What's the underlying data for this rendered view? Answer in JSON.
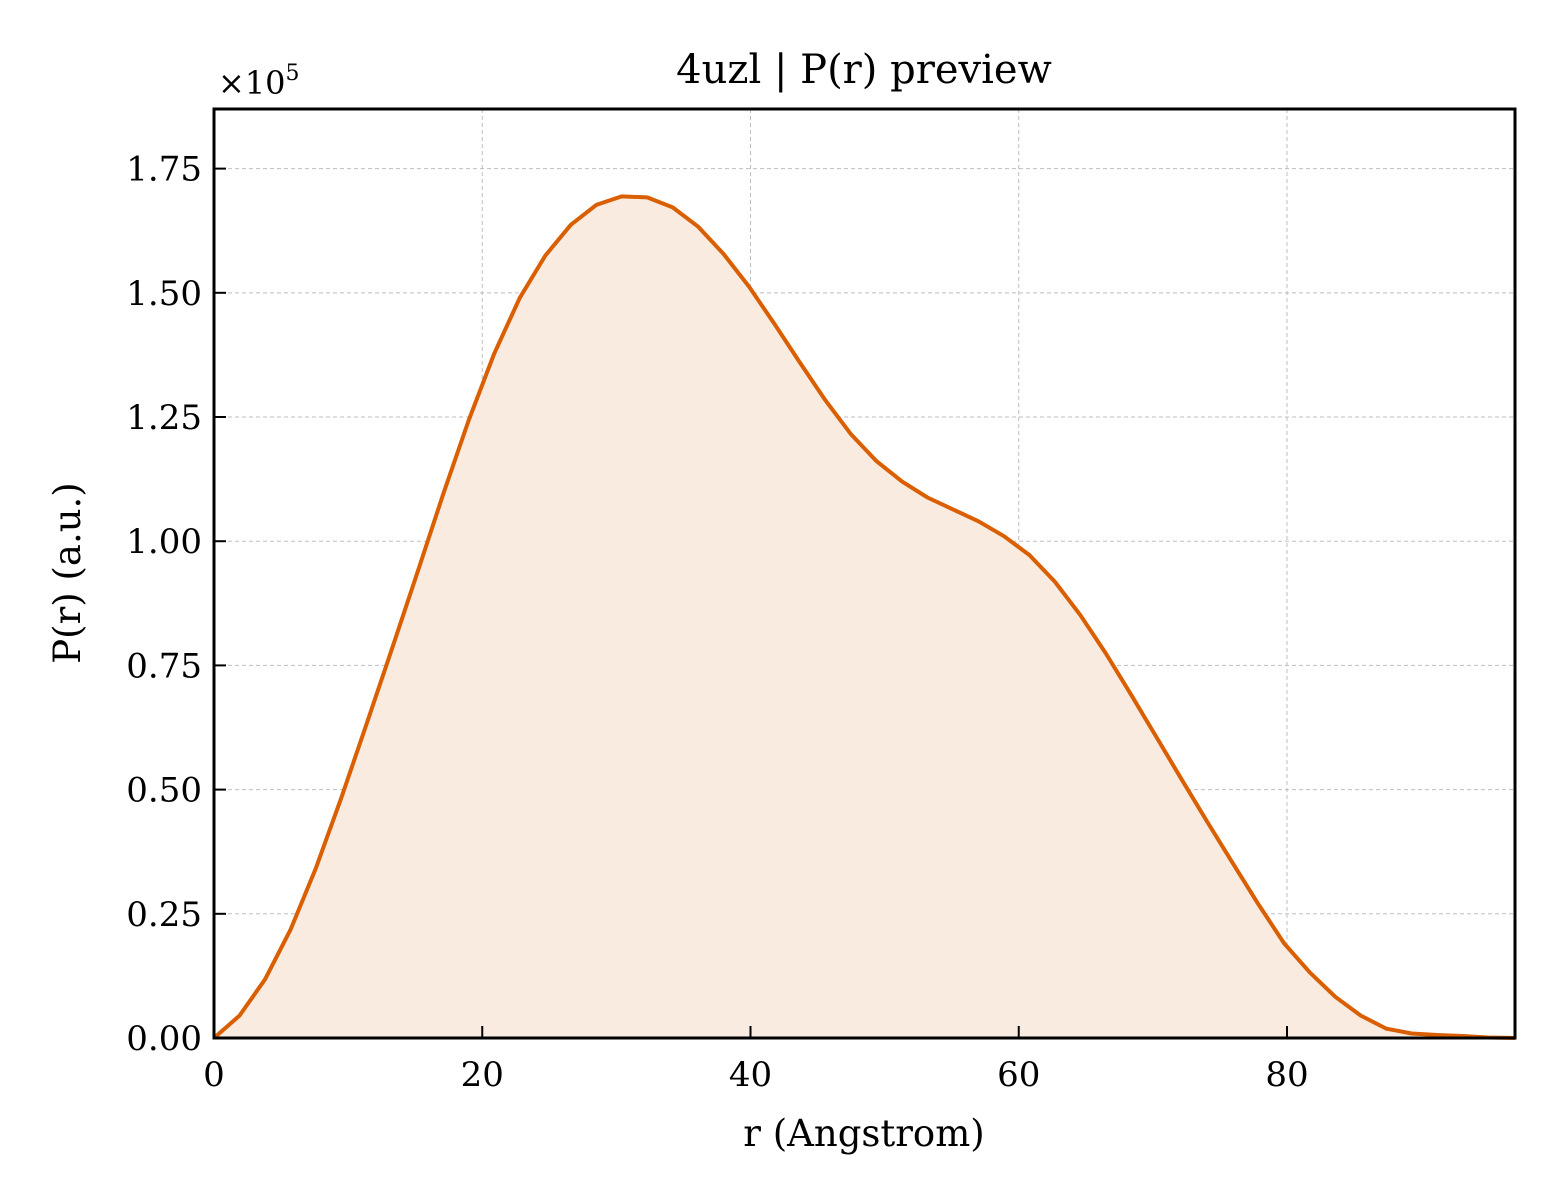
{
  "chart_data": {
    "type": "area",
    "title": "4uzl | P(r) preview",
    "xlabel": "r (Angstrom)",
    "ylabel": "P(r) (a.u.)",
    "y_offset_label": "×10",
    "y_offset_exponent": "5",
    "y_multiplier": 100000,
    "xlim": [
      0,
      97
    ],
    "ylim": [
      0,
      1.87
    ],
    "xticks": [
      0,
      20,
      40,
      60,
      80
    ],
    "xtick_labels": [
      "0",
      "20",
      "40",
      "60",
      "80"
    ],
    "yticks": [
      0,
      0.25,
      0.5,
      0.75,
      1.0,
      1.25,
      1.5,
      1.75
    ],
    "ytick_labels": [
      "0.00",
      "0.25",
      "0.50",
      "0.75",
      "1.00",
      "1.25",
      "1.50",
      "1.75"
    ],
    "grid": true,
    "line_color": "#d95f02",
    "fill_color": "#f9ebe0",
    "series": [
      {
        "x": [
          0,
          1.9,
          3.8,
          5.7,
          7.6,
          9.5,
          11.4,
          13.3,
          15.2,
          17.1,
          19.0,
          20.9,
          22.8,
          24.7,
          26.6,
          28.5,
          30.4,
          32.3,
          34.2,
          36.1,
          38.0,
          39.9,
          41.8,
          43.7,
          45.6,
          47.5,
          49.4,
          51.3,
          53.2,
          55.1,
          57.0,
          58.9,
          60.8,
          62.7,
          64.6,
          66.5,
          68.4,
          70.3,
          72.2,
          74.1,
          76.0,
          77.9,
          79.8,
          81.7,
          83.6,
          85.5,
          87.4,
          89.3,
          91.2,
          93.1,
          95.0,
          97.0
        ],
        "values": [
          0.0,
          0.045,
          0.118,
          0.218,
          0.342,
          0.484,
          0.634,
          0.786,
          0.94,
          1.096,
          1.244,
          1.378,
          1.49,
          1.575,
          1.637,
          1.677,
          1.694,
          1.692,
          1.672,
          1.633,
          1.578,
          1.512,
          1.437,
          1.359,
          1.283,
          1.215,
          1.161,
          1.12,
          1.088,
          1.064,
          1.04,
          1.01,
          0.972,
          0.918,
          0.851,
          0.774,
          0.69,
          0.604,
          0.518,
          0.433,
          0.35,
          0.268,
          0.19,
          0.132,
          0.083,
          0.045,
          0.019,
          0.009,
          0.006,
          0.004,
          0.001,
          0.0
        ]
      }
    ]
  }
}
